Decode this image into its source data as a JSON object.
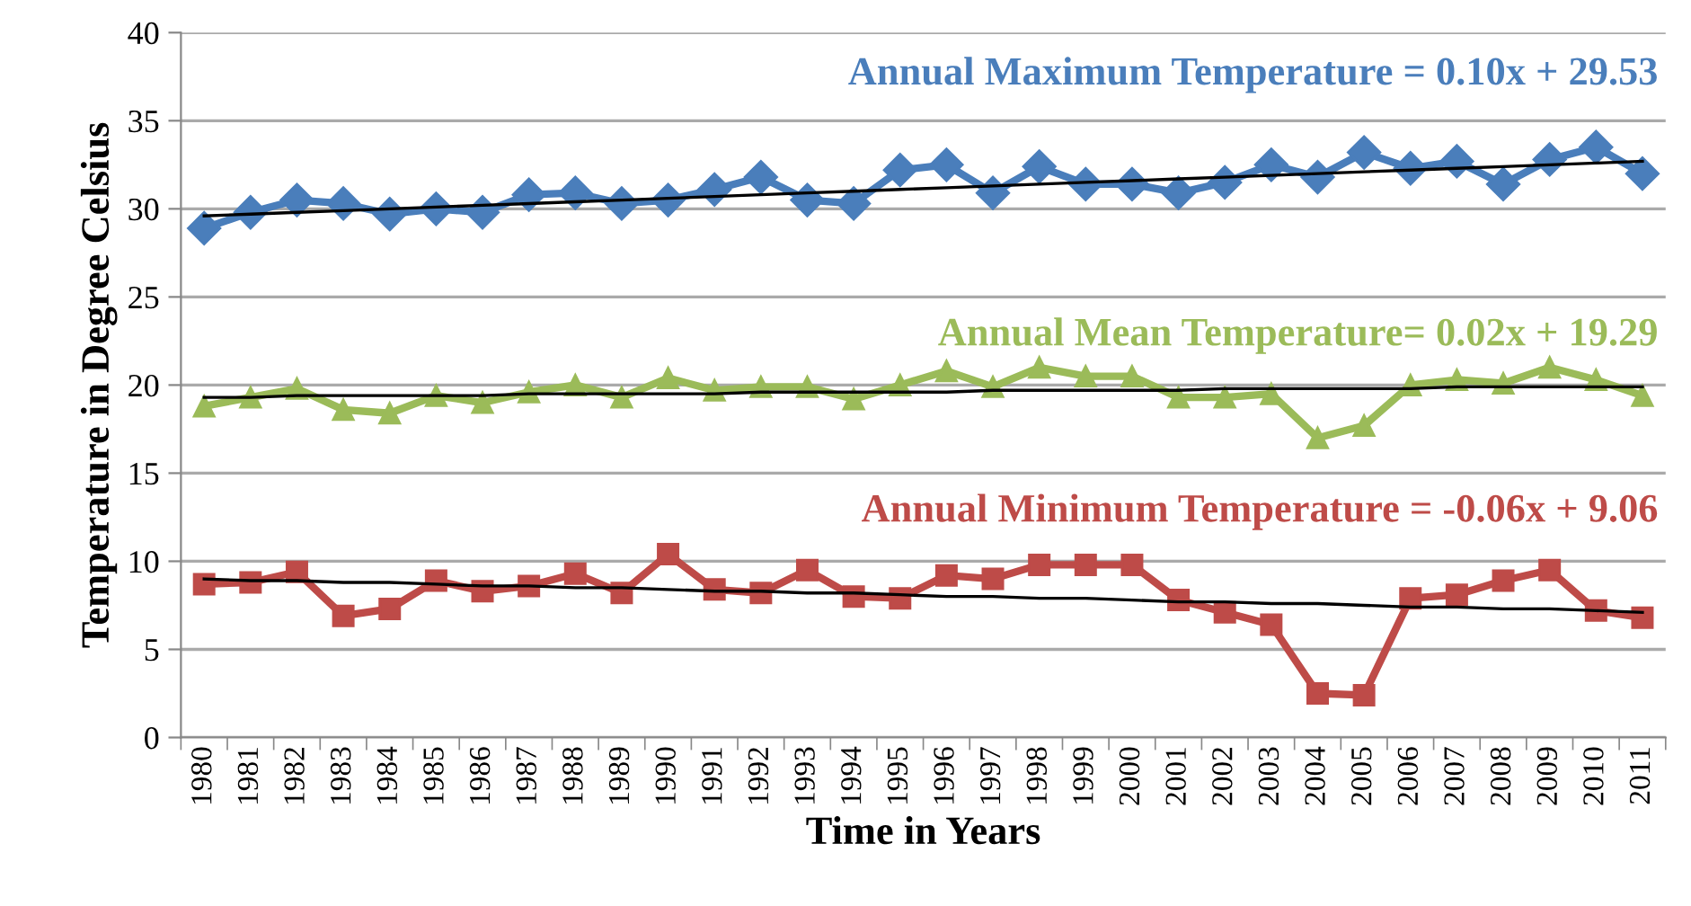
{
  "chart_data": {
    "type": "line",
    "xlabel": "Time in Years",
    "ylabel": "Temperature in Degree Celsius",
    "categories": [
      "1980",
      "1981",
      "1982",
      "1983",
      "1984",
      "1985",
      "1986",
      "1987",
      "1988",
      "1989",
      "1990",
      "1991",
      "1992",
      "1993",
      "1994",
      "1995",
      "1996",
      "1997",
      "1998",
      "1999",
      "2000",
      "2001",
      "2002",
      "2003",
      "2004",
      "2005",
      "2006",
      "2007",
      "2008",
      "2009",
      "2010",
      "2011"
    ],
    "series": [
      {
        "color": "#4a7ebb",
        "marker": "diamond",
        "values": [
          28.9,
          29.8,
          30.5,
          30.3,
          29.7,
          30.0,
          29.8,
          30.8,
          30.9,
          30.3,
          30.5,
          31.1,
          31.8,
          30.5,
          30.3,
          32.2,
          32.5,
          30.9,
          32.4,
          31.4,
          31.4,
          30.9,
          31.5,
          32.5,
          31.8,
          33.2,
          32.3,
          32.7,
          31.4,
          32.8,
          33.5,
          32.0
        ]
      },
      {
        "color": "#9bbb59",
        "marker": "triangle",
        "values": [
          18.8,
          19.3,
          19.8,
          18.6,
          18.4,
          19.4,
          19.0,
          19.6,
          20.0,
          19.3,
          20.4,
          19.7,
          19.9,
          19.9,
          19.2,
          20.0,
          20.8,
          19.9,
          21.0,
          20.5,
          20.5,
          19.3,
          19.3,
          19.5,
          17.0,
          17.7,
          20.0,
          20.3,
          20.1,
          21.0,
          20.3,
          19.4
        ]
      },
      {
        "color": "#be4b48",
        "marker": "square",
        "values": [
          8.7,
          8.8,
          9.4,
          6.9,
          7.3,
          8.9,
          8.3,
          8.6,
          9.3,
          8.2,
          10.4,
          8.4,
          8.2,
          9.5,
          8.0,
          7.9,
          9.2,
          9.0,
          9.8,
          9.8,
          9.8,
          7.8,
          7.1,
          6.4,
          2.5,
          2.4,
          7.9,
          8.1,
          8.9,
          9.5,
          7.2,
          6.8
        ]
      },
      {
        "color": "#000000",
        "marker": "none",
        "values": [
          29.6,
          29.7,
          29.8,
          29.9,
          30.0,
          30.1,
          30.2,
          30.3,
          30.4,
          30.5,
          30.6,
          30.7,
          30.8,
          30.9,
          31.0,
          31.1,
          31.2,
          31.3,
          31.4,
          31.5,
          31.6,
          31.7,
          31.8,
          31.9,
          32.0,
          32.1,
          32.2,
          32.3,
          32.4,
          32.5,
          32.6,
          32.7
        ]
      },
      {
        "color": "#000000",
        "marker": "none",
        "values": [
          19.3,
          19.3,
          19.4,
          19.4,
          19.4,
          19.4,
          19.4,
          19.5,
          19.5,
          19.5,
          19.5,
          19.5,
          19.6,
          19.6,
          19.6,
          19.6,
          19.6,
          19.7,
          19.7,
          19.7,
          19.7,
          19.7,
          19.8,
          19.8,
          19.8,
          19.8,
          19.8,
          19.9,
          19.9,
          19.9,
          19.9,
          19.9
        ]
      },
      {
        "color": "#000000",
        "marker": "none",
        "values": [
          9.0,
          8.9,
          8.9,
          8.8,
          8.8,
          8.7,
          8.6,
          8.6,
          8.5,
          8.5,
          8.4,
          8.3,
          8.3,
          8.2,
          8.2,
          8.1,
          8.0,
          8.0,
          7.9,
          7.9,
          7.8,
          7.7,
          7.7,
          7.6,
          7.6,
          7.5,
          7.4,
          7.4,
          7.3,
          7.3,
          7.2,
          7.1
        ]
      }
    ],
    "annotations": [
      "Annual Maximum Temperature = 0.10x + 29.53",
      "Annual Mean Temperature= 0.02x + 19.29",
      "Annual Minimum Temperature = -0.06x + 9.06"
    ],
    "ylim": [
      0,
      40
    ],
    "yticks": [
      0,
      5,
      10,
      15,
      20,
      25,
      30,
      35,
      40
    ],
    "grid": "y",
    "legend": false,
    "line_style": "solid"
  }
}
